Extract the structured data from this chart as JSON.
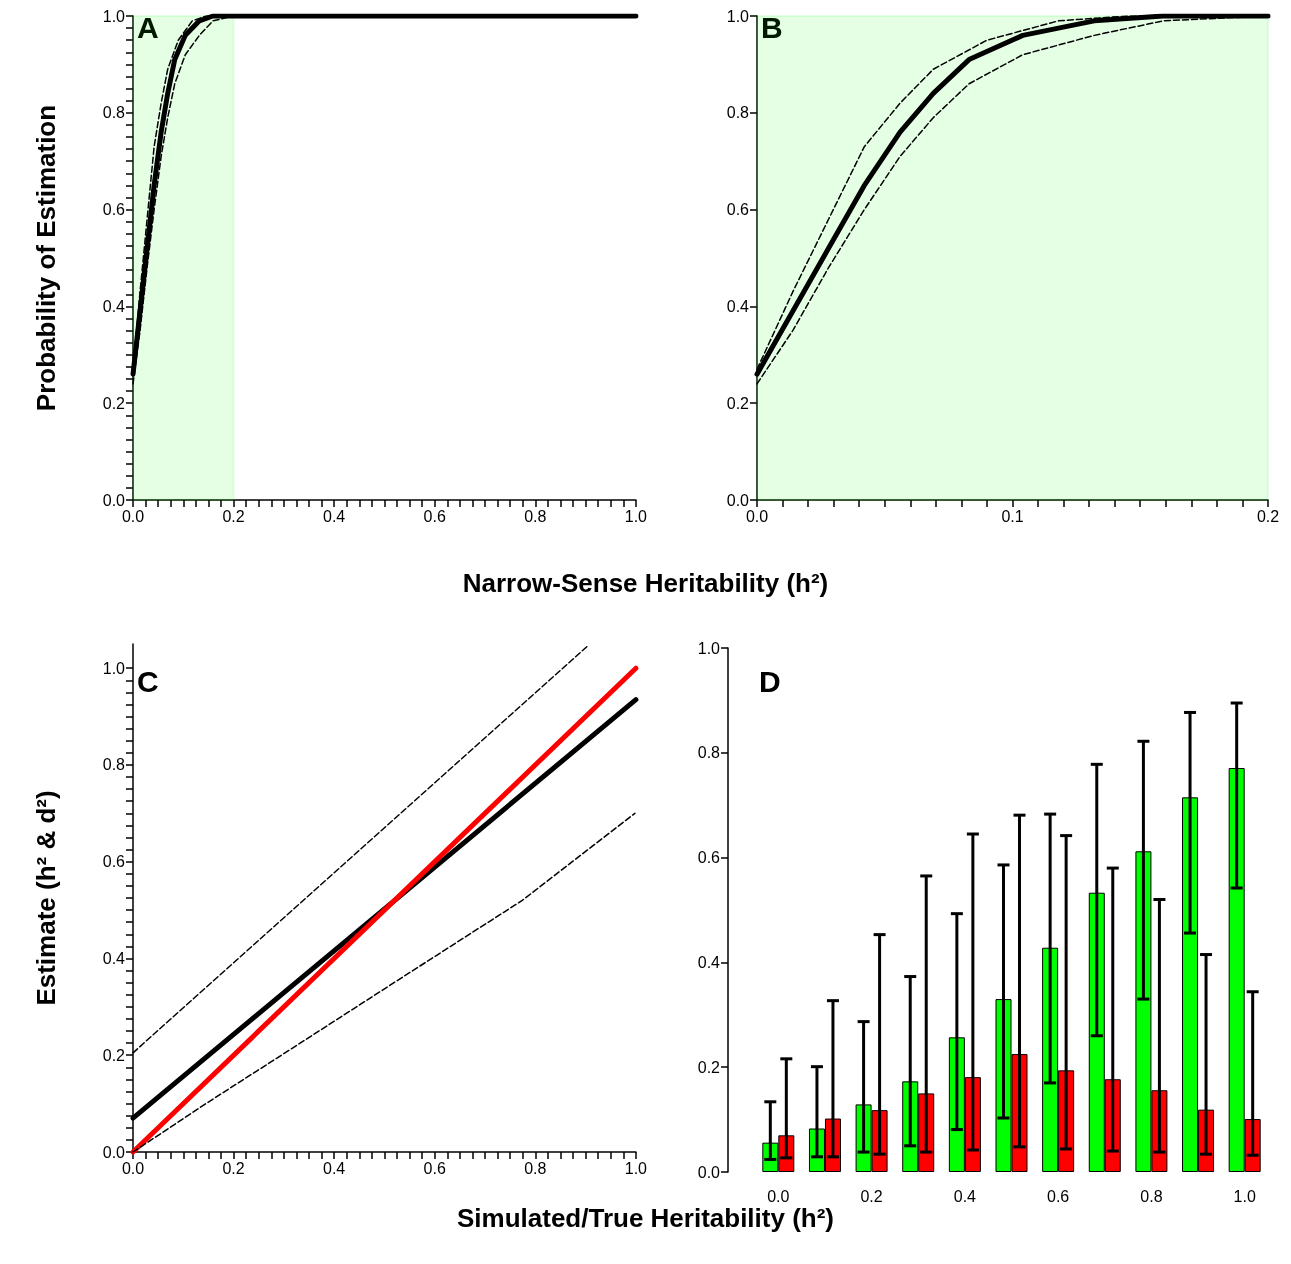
{
  "chart_data": [
    {
      "type": "line",
      "ylabel": "Probability of Estimation",
      "xlabel": "Narrow-Sense Heritability (h²)",
      "annotations": [
        "A"
      ],
      "xlim": [
        0,
        1
      ],
      "ylim": [
        0,
        1
      ],
      "xticks": [
        {
          "value": 0,
          "label": "0.0"
        },
        {
          "value": 0.025,
          "label": null
        },
        {
          "value": 0.05,
          "label": null
        },
        {
          "value": 0.075,
          "label": null
        },
        {
          "value": 0.1,
          "label": null
        },
        {
          "value": 0.125,
          "label": null
        },
        {
          "value": 0.15,
          "label": null
        },
        {
          "value": 0.175,
          "label": null
        },
        0.2,
        {
          "value": 0.225,
          "label": null
        },
        {
          "value": 0.25,
          "label": null
        },
        {
          "value": 0.275,
          "label": null
        },
        {
          "value": 0.3,
          "label": null
        },
        {
          "value": 0.325,
          "label": null
        },
        {
          "value": 0.35,
          "label": null
        },
        {
          "value": 0.375,
          "label": null
        },
        0.4,
        {
          "value": 0.425,
          "label": null
        },
        {
          "value": 0.45,
          "label": null
        },
        {
          "value": 0.475,
          "label": null
        },
        {
          "value": 0.5,
          "label": null
        },
        {
          "value": 0.525,
          "label": null
        },
        {
          "value": 0.55,
          "label": null
        },
        {
          "value": 0.575,
          "label": null
        },
        0.6,
        {
          "value": 0.625,
          "label": null
        },
        {
          "value": 0.65,
          "label": null
        },
        {
          "value": 0.675,
          "label": null
        },
        {
          "value": 0.7,
          "label": null
        },
        {
          "value": 0.725,
          "label": null
        },
        {
          "value": 0.75,
          "label": null
        },
        {
          "value": 0.775,
          "label": null
        },
        0.8,
        {
          "value": 0.825,
          "label": null
        },
        {
          "value": 0.85,
          "label": null
        },
        {
          "value": 0.875,
          "label": null
        },
        {
          "value": 0.9,
          "label": null
        },
        {
          "value": 0.925,
          "label": null
        },
        {
          "value": 0.95,
          "label": null
        },
        {
          "value": 0.975,
          "label": null
        },
        {
          "value": 1,
          "label": "1.0"
        }
      ],
      "yticks": [
        {
          "value": 0,
          "label": "0.0"
        },
        {
          "value": 0.025,
          "label": null
        },
        {
          "value": 0.05,
          "label": null
        },
        {
          "value": 0.075,
          "label": null
        },
        {
          "value": 0.1,
          "label": null
        },
        {
          "value": 0.125,
          "label": null
        },
        {
          "value": 0.15,
          "label": null
        },
        {
          "value": 0.175,
          "label": null
        },
        0.2,
        {
          "value": 0.225,
          "label": null
        },
        {
          "value": 0.25,
          "label": null
        },
        {
          "value": 0.275,
          "label": null
        },
        {
          "value": 0.3,
          "label": null
        },
        {
          "value": 0.325,
          "label": null
        },
        {
          "value": 0.35,
          "label": null
        },
        {
          "value": 0.375,
          "label": null
        },
        0.4,
        {
          "value": 0.425,
          "label": null
        },
        {
          "value": 0.45,
          "label": null
        },
        {
          "value": 0.475,
          "label": null
        },
        {
          "value": 0.5,
          "label": null
        },
        {
          "value": 0.525,
          "label": null
        },
        {
          "value": 0.55,
          "label": null
        },
        {
          "value": 0.575,
          "label": null
        },
        0.6,
        {
          "value": 0.625,
          "label": null
        },
        {
          "value": 0.65,
          "label": null
        },
        {
          "value": 0.675,
          "label": null
        },
        {
          "value": 0.7,
          "label": null
        },
        {
          "value": 0.725,
          "label": null
        },
        {
          "value": 0.75,
          "label": null
        },
        {
          "value": 0.775,
          "label": null
        },
        0.8,
        {
          "value": 0.825,
          "label": null
        },
        {
          "value": 0.85,
          "label": null
        },
        {
          "value": 0.875,
          "label": null
        },
        {
          "value": 0.9,
          "label": null
        },
        {
          "value": 0.925,
          "label": null
        },
        {
          "value": 0.95,
          "label": null
        },
        {
          "value": 0.975,
          "label": null
        },
        {
          "value": 1,
          "label": "1.0"
        }
      ],
      "bands": [
        {
          "axis": "x",
          "from": 0,
          "to": 0.2,
          "color": "#00ff00"
        }
      ],
      "series": [
        {
          "color": "#000000",
          "line_style": "dashed",
          "x": [
            0,
            0.014,
            0.028,
            0.042,
            0.056,
            0.069,
            0.09,
            0.118,
            0.145,
            0.2
          ],
          "values": [
            0.27,
            0.43,
            0.58,
            0.73,
            0.82,
            0.89,
            0.95,
            0.99,
            1.0,
            1.0
          ]
        },
        {
          "color": "#000000",
          "line_style": "dashed",
          "x": [
            0,
            0.014,
            0.028,
            0.042,
            0.056,
            0.069,
            0.083,
            0.104,
            0.132,
            0.159,
            0.2
          ],
          "values": [
            0.24,
            0.35,
            0.48,
            0.6,
            0.71,
            0.79,
            0.86,
            0.92,
            0.96,
            0.99,
            1.0
          ]
        },
        {
          "color": "#000000",
          "line_style": "solid",
          "x": [
            0,
            0.014,
            0.028,
            0.042,
            0.056,
            0.069,
            0.083,
            0.104,
            0.132,
            0.159,
            0.2,
            1
          ],
          "values": [
            0.26,
            0.39,
            0.52,
            0.65,
            0.76,
            0.84,
            0.91,
            0.96,
            0.99,
            1.0,
            1.0,
            1.0
          ]
        }
      ]
    },
    {
      "type": "line",
      "annotations": [
        "B"
      ],
      "xlim": [
        0,
        0.2
      ],
      "ylim": [
        0,
        1
      ],
      "xticks": [
        {
          "value": 0,
          "label": "0.0"
        },
        {
          "value": 0.01,
          "label": null
        },
        {
          "value": 0.02,
          "label": null
        },
        {
          "value": 0.03,
          "label": null
        },
        {
          "value": 0.04,
          "label": null
        },
        {
          "value": 0.05,
          "label": null
        },
        {
          "value": 0.06,
          "label": null
        },
        {
          "value": 0.07,
          "label": null
        },
        {
          "value": 0.08,
          "label": null
        },
        {
          "value": 0.09,
          "label": null
        },
        0.1,
        {
          "value": 0.11,
          "label": null
        },
        {
          "value": 0.12,
          "label": null
        },
        {
          "value": 0.13,
          "label": null
        },
        {
          "value": 0.14,
          "label": null
        },
        {
          "value": 0.15,
          "label": null
        },
        {
          "value": 0.16,
          "label": null
        },
        {
          "value": 0.17,
          "label": null
        },
        {
          "value": 0.18,
          "label": null
        },
        {
          "value": 0.19,
          "label": null
        },
        0.2
      ],
      "yticks": [
        {
          "value": 0,
          "label": "0.0"
        },
        0.2,
        0.4,
        0.6,
        0.8,
        {
          "value": 1,
          "label": "1.0"
        }
      ],
      "bands": [
        {
          "axis": "x",
          "from": 0,
          "to": 0.2,
          "color": "#00ff00"
        }
      ],
      "series": [
        {
          "color": "#000000",
          "line_style": "dashed",
          "x": [
            0,
            0.014,
            0.028,
            0.042,
            0.056,
            0.069,
            0.09,
            0.118,
            0.145,
            0.2
          ],
          "values": [
            0.27,
            0.43,
            0.58,
            0.73,
            0.82,
            0.89,
            0.95,
            0.99,
            1.0,
            1.0
          ]
        },
        {
          "color": "#000000",
          "line_style": "dashed",
          "x": [
            0,
            0.014,
            0.028,
            0.042,
            0.056,
            0.069,
            0.083,
            0.104,
            0.132,
            0.159,
            0.2
          ],
          "values": [
            0.24,
            0.35,
            0.48,
            0.6,
            0.71,
            0.79,
            0.86,
            0.92,
            0.96,
            0.99,
            1.0
          ]
        },
        {
          "color": "#000000",
          "line_style": "solid",
          "x": [
            0,
            0.014,
            0.028,
            0.042,
            0.056,
            0.069,
            0.083,
            0.104,
            0.132,
            0.159,
            0.2
          ],
          "values": [
            0.26,
            0.39,
            0.52,
            0.65,
            0.76,
            0.84,
            0.91,
            0.96,
            0.99,
            1.0,
            1.0
          ]
        }
      ]
    },
    {
      "type": "line",
      "ylabel": "Estimate (h² & d²)",
      "xlabel": "Simulated/True Heritability (h²)",
      "annotations": [
        "C"
      ],
      "xlim": [
        0,
        1
      ],
      "ylim": [
        0,
        1.05
      ],
      "xticks": [
        {
          "value": 0,
          "label": "0.0"
        },
        {
          "value": 0.025,
          "label": null
        },
        {
          "value": 0.05,
          "label": null
        },
        {
          "value": 0.075,
          "label": null
        },
        {
          "value": 0.1,
          "label": null
        },
        {
          "value": 0.125,
          "label": null
        },
        {
          "value": 0.15,
          "label": null
        },
        {
          "value": 0.175,
          "label": null
        },
        0.2,
        {
          "value": 0.225,
          "label": null
        },
        {
          "value": 0.25,
          "label": null
        },
        {
          "value": 0.275,
          "label": null
        },
        {
          "value": 0.3,
          "label": null
        },
        {
          "value": 0.325,
          "label": null
        },
        {
          "value": 0.35,
          "label": null
        },
        {
          "value": 0.375,
          "label": null
        },
        0.4,
        {
          "value": 0.425,
          "label": null
        },
        {
          "value": 0.45,
          "label": null
        },
        {
          "value": 0.475,
          "label": null
        },
        {
          "value": 0.5,
          "label": null
        },
        {
          "value": 0.525,
          "label": null
        },
        {
          "value": 0.55,
          "label": null
        },
        {
          "value": 0.575,
          "label": null
        },
        0.6,
        {
          "value": 0.625,
          "label": null
        },
        {
          "value": 0.65,
          "label": null
        },
        {
          "value": 0.675,
          "label": null
        },
        {
          "value": 0.7,
          "label": null
        },
        {
          "value": 0.725,
          "label": null
        },
        {
          "value": 0.75,
          "label": null
        },
        {
          "value": 0.775,
          "label": null
        },
        0.8,
        {
          "value": 0.825,
          "label": null
        },
        {
          "value": 0.85,
          "label": null
        },
        {
          "value": 0.875,
          "label": null
        },
        {
          "value": 0.9,
          "label": null
        },
        {
          "value": 0.925,
          "label": null
        },
        {
          "value": 0.95,
          "label": null
        },
        {
          "value": 0.975,
          "label": null
        },
        {
          "value": 1,
          "label": "1.0"
        }
      ],
      "yticks": [
        {
          "value": 0,
          "label": "0.0"
        },
        {
          "value": 0.025,
          "label": null
        },
        {
          "value": 0.05,
          "label": null
        },
        {
          "value": 0.075,
          "label": null
        },
        {
          "value": 0.1,
          "label": null
        },
        {
          "value": 0.125,
          "label": null
        },
        {
          "value": 0.15,
          "label": null
        },
        {
          "value": 0.175,
          "label": null
        },
        0.2,
        {
          "value": 0.225,
          "label": null
        },
        {
          "value": 0.25,
          "label": null
        },
        {
          "value": 0.275,
          "label": null
        },
        {
          "value": 0.3,
          "label": null
        },
        {
          "value": 0.325,
          "label": null
        },
        {
          "value": 0.35,
          "label": null
        },
        {
          "value": 0.375,
          "label": null
        },
        0.4,
        {
          "value": 0.425,
          "label": null
        },
        {
          "value": 0.45,
          "label": null
        },
        {
          "value": 0.475,
          "label": null
        },
        {
          "value": 0.5,
          "label": null
        },
        {
          "value": 0.525,
          "label": null
        },
        {
          "value": 0.55,
          "label": null
        },
        {
          "value": 0.575,
          "label": null
        },
        0.6,
        {
          "value": 0.625,
          "label": null
        },
        {
          "value": 0.65,
          "label": null
        },
        {
          "value": 0.675,
          "label": null
        },
        {
          "value": 0.7,
          "label": null
        },
        {
          "value": 0.725,
          "label": null
        },
        {
          "value": 0.75,
          "label": null
        },
        {
          "value": 0.775,
          "label": null
        },
        0.8,
        {
          "value": 0.825,
          "label": null
        },
        {
          "value": 0.85,
          "label": null
        },
        {
          "value": 0.875,
          "label": null
        },
        {
          "value": 0.9,
          "label": null
        },
        {
          "value": 0.925,
          "label": null
        },
        {
          "value": 0.95,
          "label": null
        },
        {
          "value": 0.975,
          "label": null
        },
        {
          "value": 1,
          "label": "1.0"
        }
      ],
      "series": [
        {
          "color": "#000000",
          "line_style": "dashed",
          "x": [
            0,
            0.903
          ],
          "values": [
            0.205,
            1.045
          ]
        },
        {
          "color": "#000000",
          "line_style": "dashed",
          "x": [
            0,
            0.145,
            0.355,
            0.564,
            0.774,
            0.998
          ],
          "values": [
            0,
            0.1,
            0.24,
            0.38,
            0.52,
            0.7
          ]
        },
        {
          "color": "#000000",
          "line_style": "solid",
          "x": [
            0,
            1
          ],
          "values": [
            0.07,
            0.935
          ]
        },
        {
          "color": "#ff0000",
          "line_style": "solid",
          "x": [
            0,
            1
          ],
          "values": [
            0,
            1
          ]
        }
      ]
    },
    {
      "type": "bar",
      "annotations": [
        "D"
      ],
      "categories": [
        "0.0",
        null,
        "0.2",
        null,
        "0.4",
        null,
        "0.6",
        null,
        "0.8",
        null,
        "1.0"
      ],
      "ylim": [
        0,
        1
      ],
      "yticks": [
        {
          "value": 0,
          "label": "0.0"
        },
        0.2,
        0.4,
        0.6,
        0.8,
        {
          "value": 1,
          "label": "1.0"
        }
      ],
      "series": [
        {
          "color": "#00ff00",
          "values": [
            0.056,
            0.083,
            0.129,
            0.173,
            0.257,
            0.33,
            0.428,
            0.533,
            0.612,
            0.715,
            0.771
          ],
          "errors": [
            [
              0.024,
              0.134
            ],
            [
              0.029,
              0.201
            ],
            [
              0.038,
              0.287
            ],
            [
              0.05,
              0.373
            ],
            [
              0.081,
              0.493
            ],
            [
              0.103,
              0.586
            ],
            [
              0.17,
              0.683
            ],
            [
              0.26,
              0.778
            ],
            [
              0.33,
              0.822
            ],
            [
              0.456,
              0.877
            ],
            [
              0.542,
              0.895
            ]
          ]
        },
        {
          "color": "#ff0000",
          "values": [
            0.07,
            0.102,
            0.118,
            0.15,
            0.181,
            0.225,
            0.194,
            0.177,
            0.156,
            0.119,
            0.101
          ],
          "errors": [
            [
              0.027,
              0.216
            ],
            [
              0.029,
              0.327
            ],
            [
              0.034,
              0.453
            ],
            [
              0.038,
              0.565
            ],
            [
              0.042,
              0.645
            ],
            [
              0.048,
              0.681
            ],
            [
              0.044,
              0.642
            ],
            [
              0.04,
              0.58
            ],
            [
              0.038,
              0.52
            ],
            [
              0.034,
              0.415
            ],
            [
              0.032,
              0.344
            ]
          ]
        }
      ]
    }
  ]
}
